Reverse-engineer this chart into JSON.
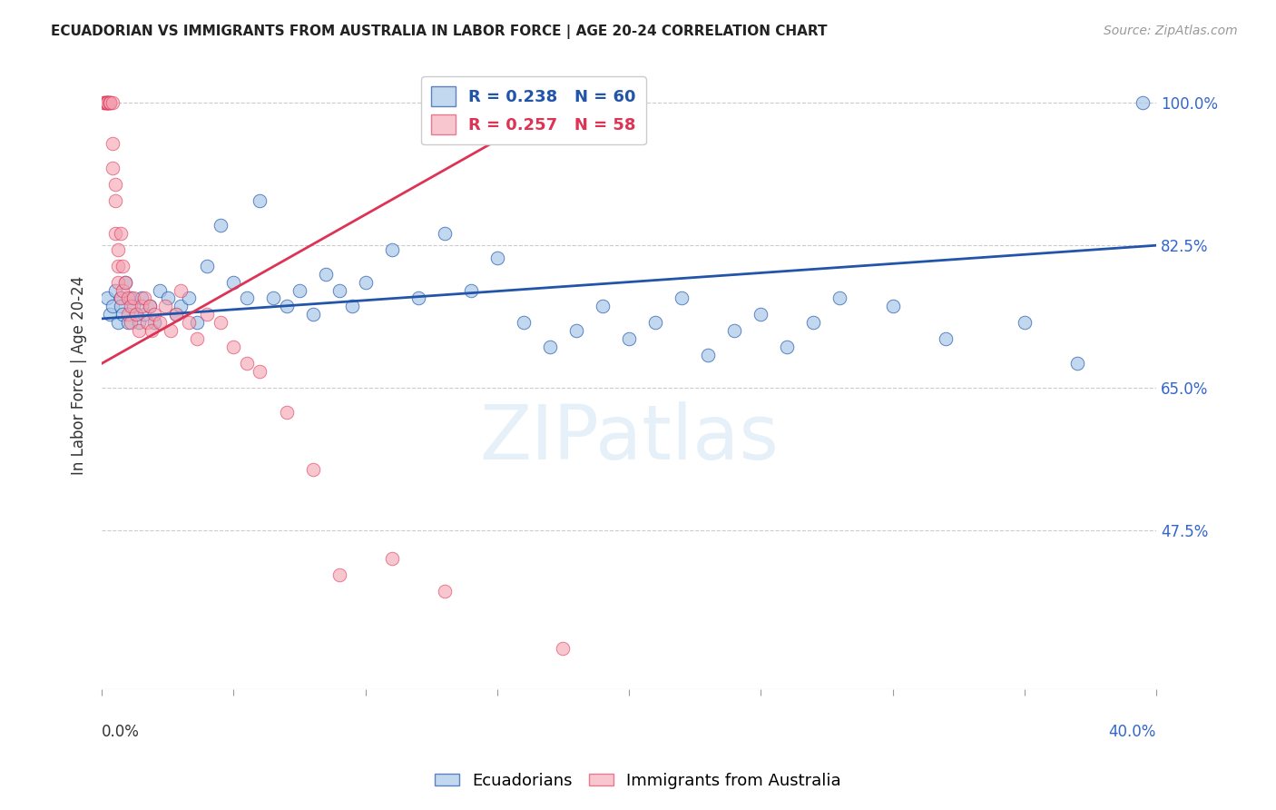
{
  "title": "ECUADORIAN VS IMMIGRANTS FROM AUSTRALIA IN LABOR FORCE | AGE 20-24 CORRELATION CHART",
  "source": "Source: ZipAtlas.com",
  "ylabel": "In Labor Force | Age 20-24",
  "ytick_labels": [
    "100.0%",
    "82.5%",
    "65.0%",
    "47.5%"
  ],
  "ytick_values": [
    1.0,
    0.825,
    0.65,
    0.475
  ],
  "xmin": 0.0,
  "xmax": 0.4,
  "ymin": 0.28,
  "ymax": 1.05,
  "blue_R": 0.238,
  "blue_N": 60,
  "pink_R": 0.257,
  "pink_N": 58,
  "blue_color": "#a8c8e8",
  "pink_color": "#f4a0b0",
  "blue_line_color": "#2255aa",
  "pink_line_color": "#dd3355",
  "watermark": "ZIPatlas",
  "blue_x": [
    0.002,
    0.003,
    0.004,
    0.005,
    0.006,
    0.007,
    0.007,
    0.008,
    0.009,
    0.01,
    0.011,
    0.012,
    0.013,
    0.014,
    0.015,
    0.016,
    0.018,
    0.02,
    0.022,
    0.025,
    0.028,
    0.03,
    0.033,
    0.036,
    0.04,
    0.045,
    0.05,
    0.055,
    0.06,
    0.065,
    0.07,
    0.075,
    0.08,
    0.085,
    0.09,
    0.095,
    0.1,
    0.11,
    0.12,
    0.13,
    0.14,
    0.15,
    0.16,
    0.17,
    0.18,
    0.19,
    0.2,
    0.21,
    0.22,
    0.23,
    0.24,
    0.25,
    0.26,
    0.27,
    0.28,
    0.3,
    0.32,
    0.35,
    0.37,
    0.395
  ],
  "blue_y": [
    0.76,
    0.74,
    0.75,
    0.77,
    0.73,
    0.76,
    0.75,
    0.74,
    0.78,
    0.73,
    0.76,
    0.75,
    0.74,
    0.73,
    0.76,
    0.74,
    0.75,
    0.73,
    0.77,
    0.76,
    0.74,
    0.75,
    0.76,
    0.73,
    0.8,
    0.85,
    0.78,
    0.76,
    0.88,
    0.76,
    0.75,
    0.77,
    0.74,
    0.79,
    0.77,
    0.75,
    0.78,
    0.82,
    0.76,
    0.84,
    0.77,
    0.81,
    0.73,
    0.7,
    0.72,
    0.75,
    0.71,
    0.73,
    0.76,
    0.69,
    0.72,
    0.74,
    0.7,
    0.73,
    0.76,
    0.75,
    0.71,
    0.73,
    0.68,
    1.0
  ],
  "pink_x": [
    0.001,
    0.001,
    0.001,
    0.002,
    0.002,
    0.002,
    0.002,
    0.002,
    0.002,
    0.003,
    0.003,
    0.003,
    0.003,
    0.004,
    0.004,
    0.004,
    0.005,
    0.005,
    0.005,
    0.006,
    0.006,
    0.006,
    0.007,
    0.007,
    0.008,
    0.008,
    0.009,
    0.01,
    0.01,
    0.011,
    0.011,
    0.012,
    0.013,
    0.014,
    0.015,
    0.016,
    0.017,
    0.018,
    0.019,
    0.02,
    0.022,
    0.024,
    0.026,
    0.028,
    0.03,
    0.033,
    0.036,
    0.04,
    0.045,
    0.05,
    0.055,
    0.06,
    0.07,
    0.08,
    0.09,
    0.11,
    0.13,
    0.175
  ],
  "pink_y": [
    1.0,
    1.0,
    1.0,
    1.0,
    1.0,
    1.0,
    1.0,
    1.0,
    1.0,
    1.0,
    1.0,
    1.0,
    1.0,
    1.0,
    0.95,
    0.92,
    0.9,
    0.88,
    0.84,
    0.82,
    0.8,
    0.78,
    0.84,
    0.76,
    0.8,
    0.77,
    0.78,
    0.76,
    0.74,
    0.75,
    0.73,
    0.76,
    0.74,
    0.72,
    0.75,
    0.76,
    0.73,
    0.75,
    0.72,
    0.74,
    0.73,
    0.75,
    0.72,
    0.74,
    0.77,
    0.73,
    0.71,
    0.74,
    0.73,
    0.7,
    0.68,
    0.67,
    0.62,
    0.55,
    0.42,
    0.44,
    0.4,
    0.33
  ]
}
